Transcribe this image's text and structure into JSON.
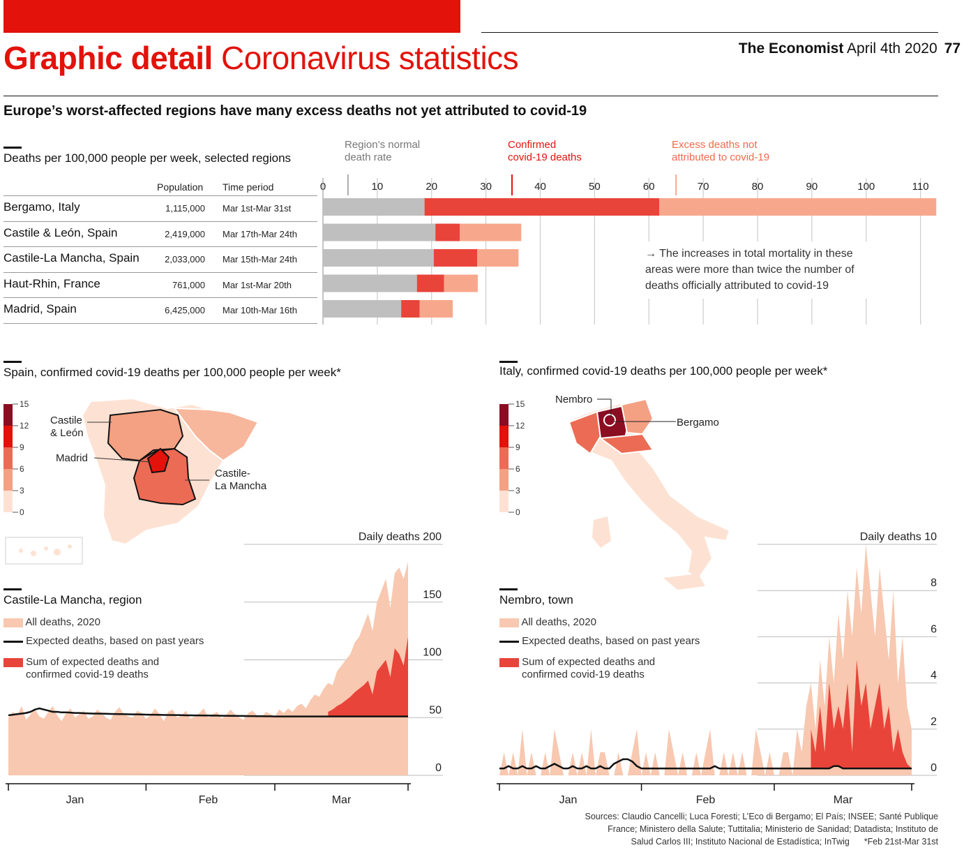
{
  "section": "Graphic detail",
  "section_topic": "Coronavirus statistics",
  "publication": "The Economist",
  "date": "April 4th 2020",
  "page_number": "77",
  "headline": "Europe’s worst-affected regions have many excess deaths not yet attributed to covid-19",
  "colors": {
    "brand_red": "#e3120b",
    "gray": "#bfbfbf",
    "confirmed": "#e8443a",
    "excess": "#f7a88c",
    "light": "#f8c8b0"
  },
  "chart_data": [
    {
      "type": "bar",
      "subtype": "stacked-horizontal",
      "title": "Deaths per 100,000 people per week, selected regions",
      "column_headers": {
        "population": "Population",
        "period": "Time period"
      },
      "legend": [
        {
          "name": "Region’s normal death rate",
          "color": "#bfbfbf"
        },
        {
          "name": "Confirmed covid-19 deaths",
          "color": "#e8443a"
        },
        {
          "name": "Excess deaths not attributed to covid-19",
          "color": "#f7a88c"
        }
      ],
      "legend_lines": {
        "normal": [
          "Region’s normal",
          "death rate"
        ],
        "confirmed": [
          "Confirmed",
          "covid-19 deaths"
        ],
        "excess": [
          "Excess deaths not",
          "attributed to covid-19"
        ]
      },
      "xlim": [
        0,
        113
      ],
      "xticks": [
        0,
        10,
        20,
        30,
        40,
        50,
        60,
        70,
        80,
        90,
        100,
        110
      ],
      "rows": [
        {
          "region": "Bergamo, Italy",
          "population": "1,115,000",
          "period": "Mar 1st-Mar 31st",
          "normal": 18.7,
          "confirmed": 43.2,
          "excess": 51
        },
        {
          "region": "Castile & León, Spain",
          "population": "2,419,000",
          "period": "Mar 17th-Mar 24th",
          "normal": 20.7,
          "confirmed": 4.5,
          "excess": 11.3
        },
        {
          "region": "Castile-La Mancha, Spain",
          "population": "2,033,000",
          "period": "Mar 15th-Mar 24th",
          "normal": 20.4,
          "confirmed": 8,
          "excess": 7.6
        },
        {
          "region": "Haut-Rhin, France",
          "population": "761,000",
          "period": "Mar 1st-Mar 20th",
          "normal": 17.3,
          "confirmed": 5,
          "excess": 6.2
        },
        {
          "region": "Madrid, Spain",
          "population": "6,425,000",
          "period": "Mar 10th-Mar 16th",
          "normal": 14.4,
          "confirmed": 3.4,
          "excess": 6.1
        }
      ],
      "annotation": [
        "→ The increases in total mortality in these",
        "areas were more than twice the number of",
        "deaths officially attributed to covid-19"
      ]
    },
    {
      "type": "area",
      "title": "Castile-La Mancha, region",
      "map_title": "Spain, confirmed covid-19 deaths per 100,000 people per week*",
      "map_scale": [
        0,
        3,
        6,
        9,
        12,
        15
      ],
      "map_labels": {
        "castile_leon": [
          "Castile",
          "& León"
        ],
        "madrid": "Madrid",
        "la_mancha": [
          "Castile-",
          "La Mancha"
        ]
      },
      "legend": [
        "All deaths, 2020",
        "Expected deaths, based on past years",
        "Sum of expected deaths and",
        "confirmed covid-19 deaths"
      ],
      "ylabel": "Daily deaths",
      "ylim": [
        0,
        200
      ],
      "yticks": [
        0,
        50,
        100,
        150,
        200
      ],
      "xlabels": [
        "Jan",
        "Feb",
        "Mar"
      ],
      "x_start": "Jan 1st",
      "x_end": "Mar 31st",
      "all_deaths": [
        50,
        55,
        52,
        60,
        48,
        53,
        57,
        51,
        49,
        55,
        60,
        52,
        47,
        54,
        58,
        50,
        53,
        56,
        49,
        51,
        57,
        54,
        50,
        48,
        55,
        59,
        53,
        51,
        50,
        56,
        54,
        49,
        52,
        58,
        53,
        47,
        55,
        57,
        50,
        52,
        56,
        49,
        51,
        54,
        58,
        50,
        53,
        55,
        49,
        52,
        57,
        53,
        50,
        48,
        54,
        56,
        52,
        50,
        55,
        53,
        51,
        57,
        54,
        58,
        55,
        60,
        62,
        58,
        65,
        70,
        68,
        75,
        80,
        78,
        90,
        95,
        100,
        105,
        115,
        120,
        130,
        140,
        125,
        150,
        160,
        170,
        145,
        175,
        180,
        170,
        185
      ],
      "expected": [
        52,
        52.5,
        53,
        53.5,
        54,
        55,
        57,
        58,
        57,
        56,
        55,
        55,
        54.5,
        54.5,
        54.3,
        54,
        54,
        53.8,
        53.6,
        53.5,
        53.5,
        53.4,
        53.3,
        53.2,
        53.1,
        53,
        53,
        52.9,
        52.8,
        52.8,
        52.7,
        52.6,
        52.5,
        52.5,
        52.4,
        52.3,
        52.3,
        52.2,
        52.2,
        52.1,
        52,
        52,
        51.9,
        51.9,
        51.8,
        51.8,
        51.7,
        51.7,
        51.6,
        51.6,
        51.5,
        51.5,
        51.4,
        51.4,
        51.3,
        51.3,
        51.2,
        51.2,
        51.1,
        51.1,
        51,
        51,
        51,
        51,
        51,
        51,
        51,
        51,
        51,
        51,
        51,
        51,
        51,
        51,
        51,
        51,
        51,
        51,
        51,
        51,
        51,
        51,
        51,
        51,
        51,
        51,
        51,
        51,
        51,
        51,
        51
      ],
      "sum_expected_confirmed": [
        null,
        null,
        null,
        null,
        null,
        null,
        null,
        null,
        null,
        null,
        null,
        null,
        null,
        null,
        null,
        null,
        null,
        null,
        null,
        null,
        null,
        null,
        null,
        null,
        null,
        null,
        null,
        null,
        null,
        null,
        null,
        null,
        null,
        null,
        null,
        null,
        null,
        null,
        null,
        null,
        null,
        null,
        null,
        null,
        null,
        null,
        null,
        null,
        null,
        null,
        null,
        null,
        null,
        null,
        null,
        null,
        null,
        null,
        null,
        null,
        null,
        null,
        null,
        null,
        null,
        null,
        null,
        null,
        null,
        null,
        null,
        null,
        55,
        57,
        60,
        62,
        65,
        68,
        72,
        75,
        78,
        82,
        70,
        90,
        95,
        100,
        85,
        110,
        105,
        95,
        120
      ]
    },
    {
      "type": "area",
      "title": "Nembro, town",
      "map_title": "Italy, confirmed covid-19 deaths per 100,000 people per week*",
      "map_scale": [
        0,
        3,
        6,
        9,
        12,
        15
      ],
      "map_labels": {
        "nembro": "Nembro",
        "bergamo": "Bergamo"
      },
      "legend": [
        "All deaths, 2020",
        "Expected deaths, based on past years",
        "Sum of expected deaths and",
        "confirmed covid-19 deaths"
      ],
      "ylabel": "Daily deaths",
      "ylim": [
        0,
        10
      ],
      "yticks": [
        0,
        2,
        4,
        6,
        8,
        10
      ],
      "xlabels": [
        "Jan",
        "Feb",
        "Mar"
      ],
      "x_start": "Jan 1st",
      "x_end": "Mar 31st",
      "all_deaths": [
        0,
        1,
        0,
        1,
        0,
        2,
        0,
        1,
        0,
        0,
        1,
        0,
        2,
        1,
        0,
        0,
        1,
        0,
        1,
        0,
        2,
        0,
        1,
        1,
        0,
        0,
        1,
        0,
        0,
        1,
        2,
        0,
        1,
        0,
        1,
        0,
        0,
        2,
        1,
        0,
        1,
        0,
        0,
        1,
        0,
        1,
        2,
        0,
        0,
        1,
        0,
        1,
        0,
        1,
        0,
        0,
        2,
        1,
        0,
        1,
        0,
        0,
        1,
        1,
        0,
        2,
        1,
        3,
        4,
        2,
        5,
        3,
        6,
        4,
        7,
        5,
        8,
        6,
        9,
        7,
        10,
        8,
        6,
        9,
        7,
        5,
        8,
        4,
        6,
        3,
        2
      ],
      "expected": [
        0.3,
        0.3,
        0.4,
        0.3,
        0.3,
        0.4,
        0.3,
        0.3,
        0.4,
        0.3,
        0.3,
        0.4,
        0.5,
        0.4,
        0.3,
        0.3,
        0.4,
        0.3,
        0.3,
        0.4,
        0.3,
        0.3,
        0.4,
        0.3,
        0.3,
        0.5,
        0.6,
        0.7,
        0.7,
        0.6,
        0.4,
        0.3,
        0.3,
        0.3,
        0.3,
        0.3,
        0.3,
        0.3,
        0.3,
        0.3,
        0.3,
        0.3,
        0.3,
        0.3,
        0.3,
        0.3,
        0.3,
        0.4,
        0.3,
        0.3,
        0.3,
        0.3,
        0.3,
        0.3,
        0.3,
        0.3,
        0.3,
        0.3,
        0.3,
        0.3,
        0.3,
        0.3,
        0.3,
        0.3,
        0.3,
        0.3,
        0.3,
        0.3,
        0.3,
        0.3,
        0.3,
        0.3,
        0.3,
        0.4,
        0.4,
        0.3,
        0.3,
        0.3,
        0.3,
        0.3,
        0.3,
        0.3,
        0.3,
        0.3,
        0.3,
        0.3,
        0.3,
        0.3,
        0.3,
        0.3,
        0.3
      ],
      "sum_expected_confirmed": [
        null,
        null,
        null,
        null,
        null,
        null,
        null,
        null,
        null,
        null,
        null,
        null,
        null,
        null,
        null,
        null,
        null,
        null,
        null,
        null,
        null,
        null,
        null,
        null,
        null,
        null,
        null,
        null,
        null,
        null,
        null,
        null,
        null,
        null,
        null,
        null,
        null,
        null,
        null,
        null,
        null,
        null,
        null,
        null,
        null,
        null,
        null,
        null,
        null,
        null,
        null,
        null,
        null,
        null,
        null,
        null,
        null,
        null,
        null,
        null,
        null,
        null,
        null,
        null,
        null,
        null,
        null,
        null,
        2,
        1,
        3,
        1,
        4,
        2,
        3,
        2,
        4,
        1,
        5,
        3,
        4,
        2,
        3,
        4,
        2,
        3,
        1,
        2,
        1,
        0.5,
        0.3
      ]
    }
  ],
  "sources": [
    "Sources: Claudio Cancelli; Luca Foresti; L’Eco di Bergamo; El País; INSEE; Santé Publique",
    "France; Ministero della Salute; Tuttitalia; Ministerio de Sanidad; Datadista; Instituto de",
    "Salud Carlos III; Instituto Nacional de Estadística; InTwig",
    "*Feb 21st-Mar 31st"
  ]
}
